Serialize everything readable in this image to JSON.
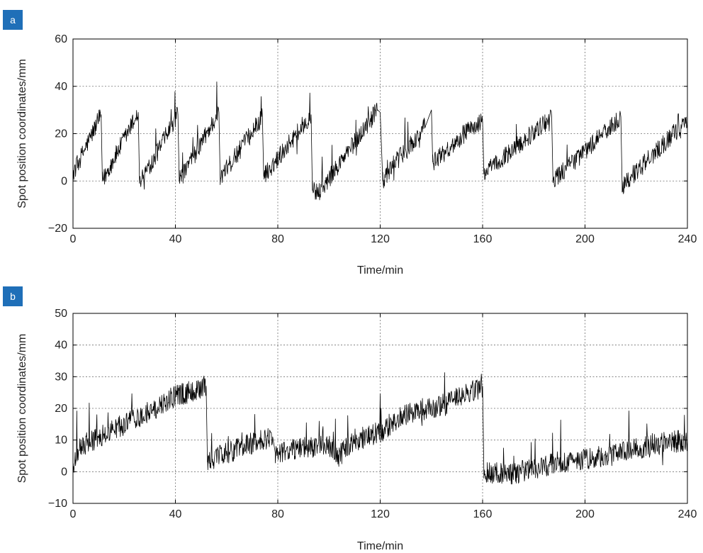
{
  "chart_data": [
    {
      "type": "line",
      "panel_label": "a",
      "title": "",
      "xlabel": "Time/min",
      "ylabel": "Spot position coordinates/mm",
      "xlim": [
        0,
        240
      ],
      "ylim": [
        -20,
        60
      ],
      "x_ticks": [
        0,
        40,
        80,
        120,
        160,
        200,
        240
      ],
      "y_ticks": [
        -20,
        0,
        20,
        40,
        60
      ],
      "grid": true,
      "legend": "none",
      "color": "#000000",
      "series": [
        {
          "x": [
            0,
            11,
            11.5,
            25.5,
            26,
            41,
            41.5,
            57,
            57.5,
            74,
            74.5,
            93,
            93.5,
            96,
            119,
            120,
            121,
            126,
            131,
            135,
            138,
            139,
            140,
            140.5,
            145,
            150,
            155,
            160,
            160.5,
            187,
            187.5,
            214,
            214.5,
            240
          ],
          "y": [
            3,
            28,
            0,
            29,
            -1,
            28,
            0,
            29,
            1,
            27,
            2,
            28,
            -4,
            -5,
            30,
            29,
            0,
            8,
            14,
            19,
            24,
            27,
            30,
            8,
            12,
            17,
            22,
            25,
            3,
            27,
            0,
            27,
            -2,
            26
          ]
        }
      ]
    },
    {
      "type": "line",
      "panel_label": "b",
      "title": "",
      "xlabel": "Time/min",
      "ylabel": "Spot position coordinates/mm",
      "xlim": [
        0,
        240
      ],
      "ylim": [
        -10,
        50
      ],
      "x_ticks": [
        0,
        40,
        80,
        120,
        160,
        200,
        240
      ],
      "y_ticks": [
        -10,
        0,
        10,
        20,
        30,
        40,
        50
      ],
      "grid": true,
      "legend": "none",
      "color": "#000000",
      "series": [
        {
          "x": [
            0,
            3,
            10,
            20,
            30,
            40,
            45,
            52,
            52.5,
            60,
            70,
            78,
            79,
            90,
            100,
            104,
            110,
            120,
            125,
            130,
            140,
            150,
            160,
            160.5,
            170,
            180,
            190,
            200,
            210,
            220,
            230,
            240
          ],
          "y": [
            2,
            8,
            11,
            15,
            19,
            24,
            25,
            27,
            3,
            6,
            9,
            11,
            6,
            8,
            8,
            5,
            10,
            12,
            16,
            18,
            20,
            23,
            27,
            0,
            -1,
            1,
            3,
            4,
            5,
            7,
            9,
            10
          ]
        }
      ]
    }
  ]
}
